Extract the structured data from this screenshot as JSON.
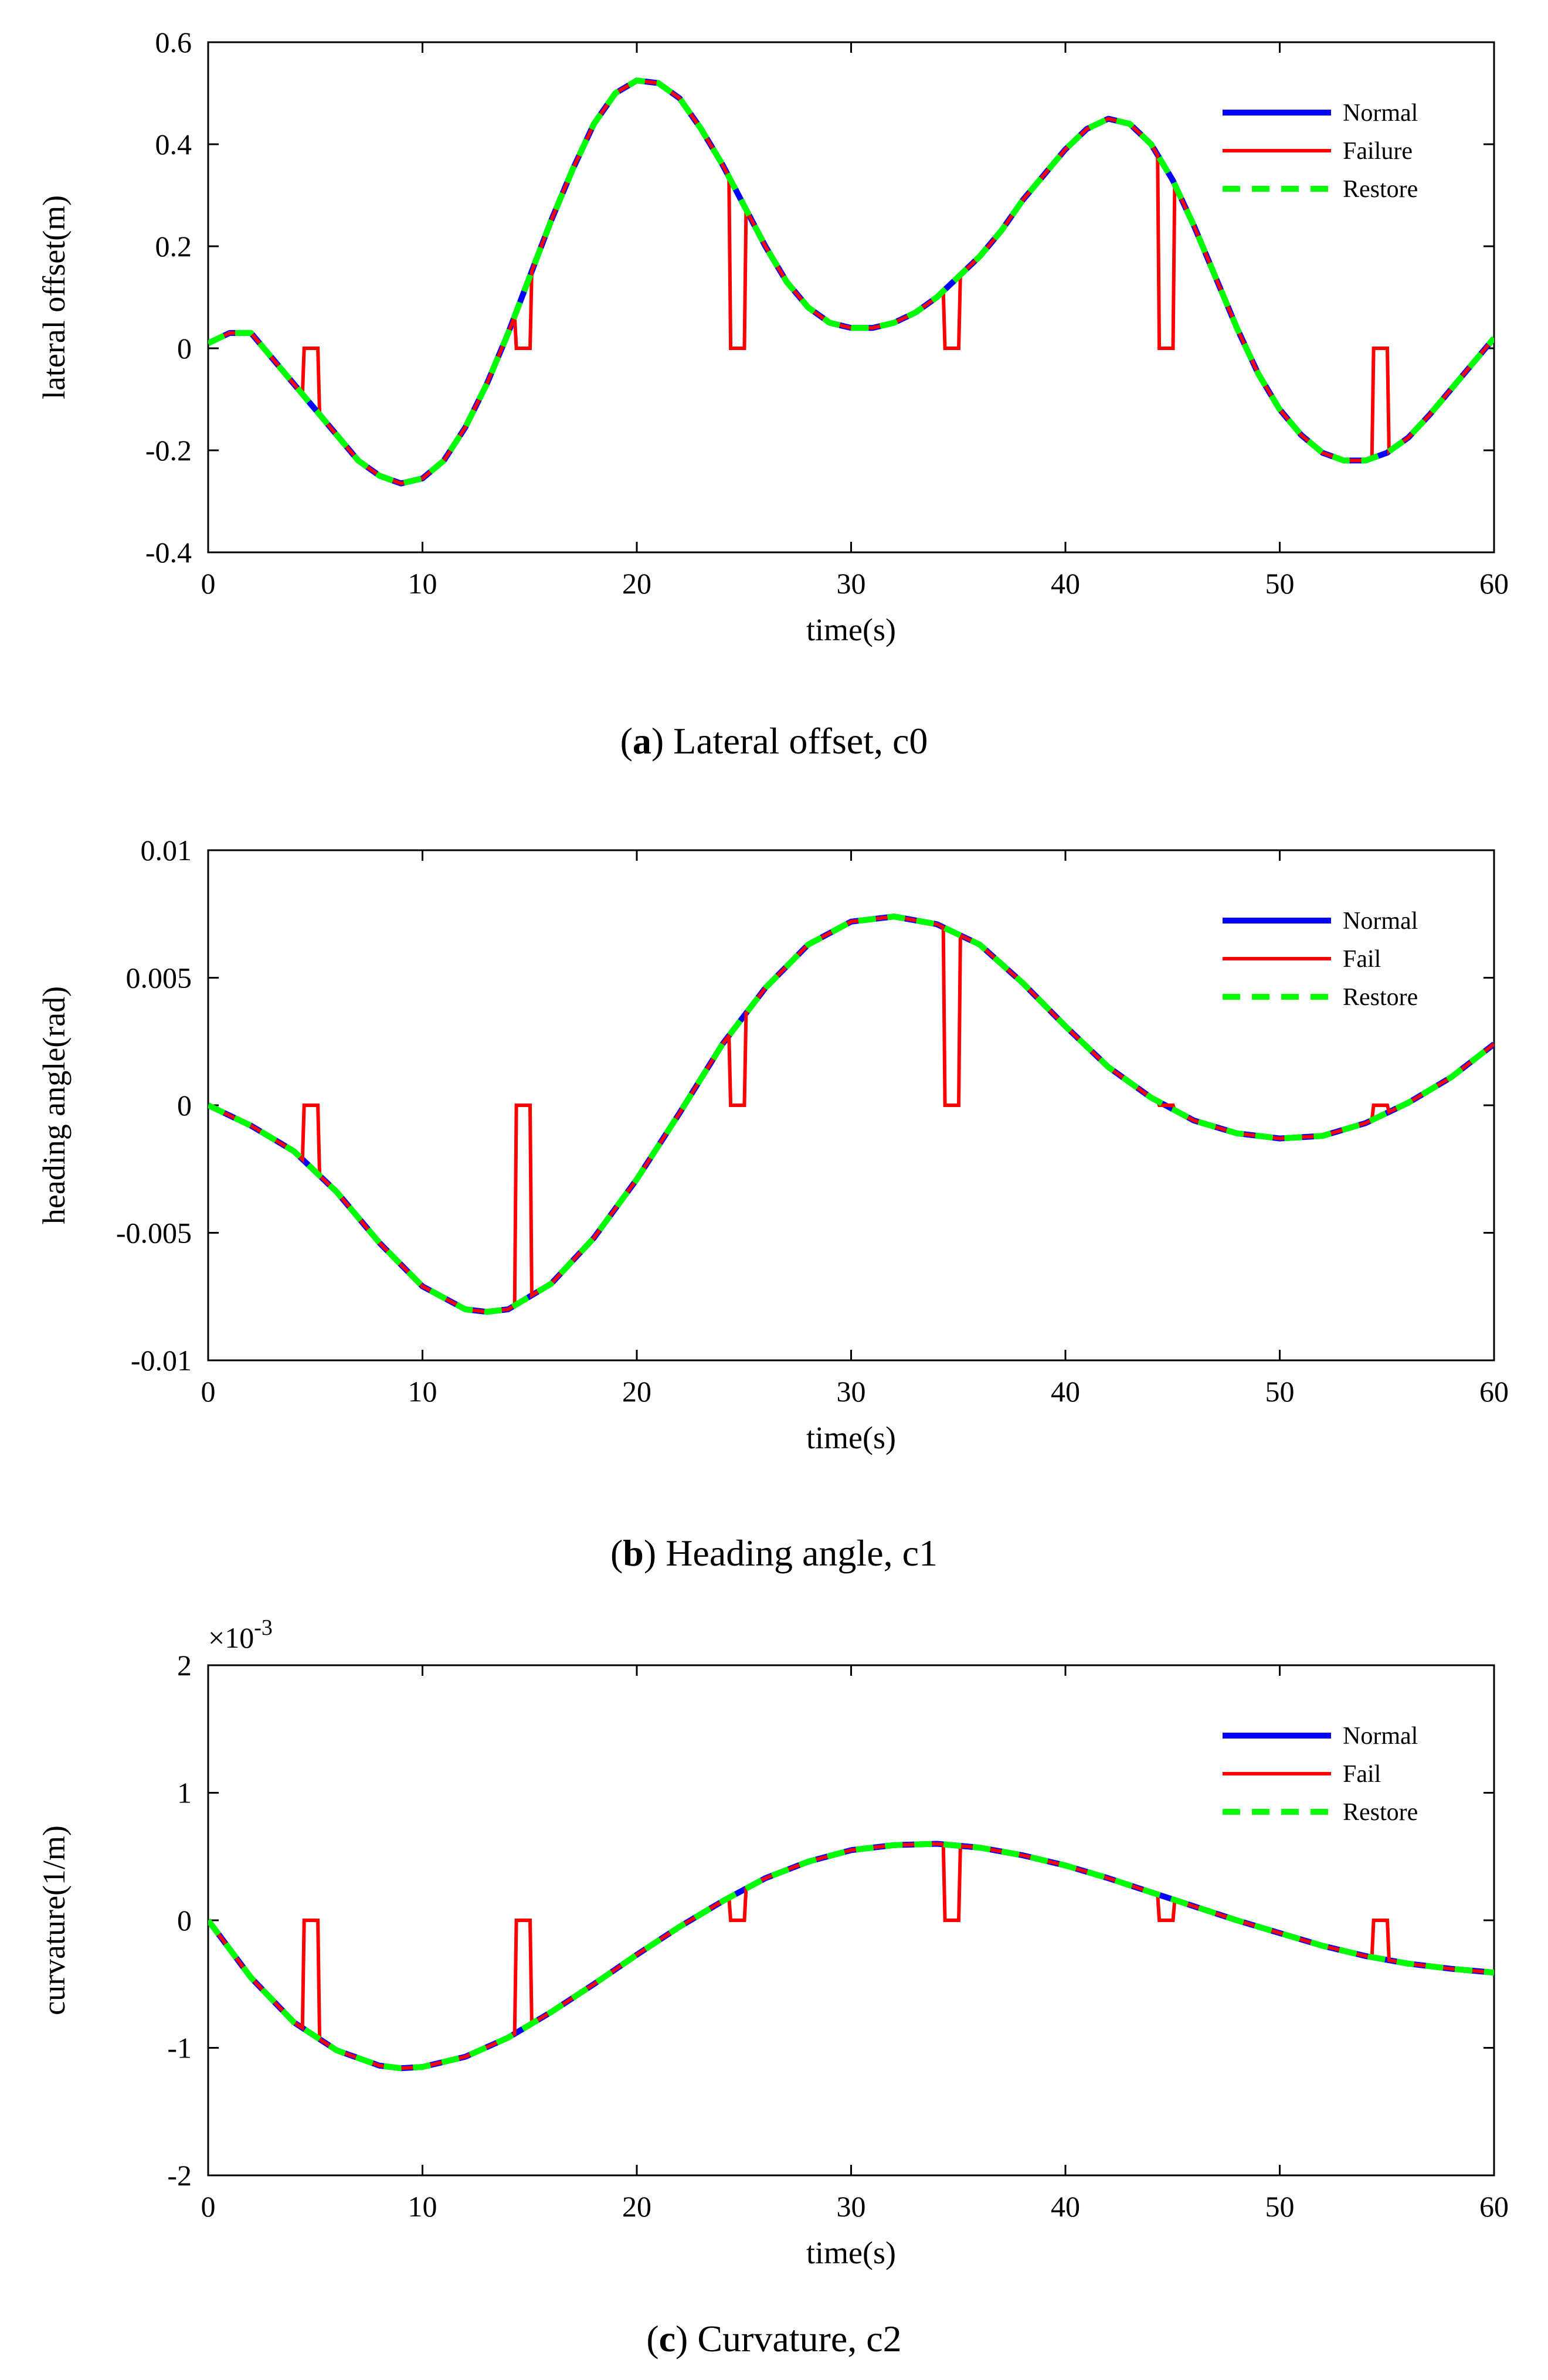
{
  "chart_data": [
    {
      "type": "line",
      "xlabel": "time(s)",
      "ylabel": "lateral offset(m)",
      "xlim": [
        0,
        60
      ],
      "ylim": [
        -0.4,
        0.6
      ],
      "xticks": [
        0,
        10,
        20,
        30,
        40,
        50,
        60
      ],
      "yticks": [
        -0.4,
        -0.2,
        0,
        0.2,
        0.4,
        0.6
      ],
      "xtick_labels": [
        "0",
        "10",
        "20",
        "30",
        "40",
        "50",
        "60"
      ],
      "ytick_labels": [
        "-0.4",
        "-0.2",
        "0",
        "0.2",
        "0.4",
        "0.6"
      ],
      "exponent_label": "",
      "caption_letter": "a",
      "caption_text": " Lateral offset, c0",
      "legend_location": "top-right",
      "series": [
        {
          "name": "Normal",
          "color": "#0000ff",
          "style": "solid"
        },
        {
          "name": "Failure",
          "color": "#ff0000",
          "style": "solid"
        },
        {
          "name": "Restore",
          "color": "#00ff00",
          "style": "dashed"
        }
      ],
      "x": [
        0,
        1,
        2,
        3,
        4,
        5,
        6,
        7,
        8,
        9,
        10,
        11,
        12,
        13,
        14,
        15,
        16,
        17,
        18,
        19,
        20,
        21,
        22,
        23,
        24,
        25,
        26,
        27,
        28,
        29,
        30,
        31,
        32,
        33,
        34,
        35,
        36,
        37,
        38,
        39,
        40,
        41,
        42,
        43,
        44,
        45,
        46,
        47,
        48,
        49,
        50,
        51,
        52,
        53,
        54,
        55,
        56,
        57,
        58,
        59,
        60
      ],
      "y": [
        0.01,
        0.03,
        0.03,
        -0.02,
        -0.07,
        -0.12,
        -0.17,
        -0.22,
        -0.25,
        -0.265,
        -0.255,
        -0.22,
        -0.155,
        -0.07,
        0.03,
        0.14,
        0.25,
        0.35,
        0.44,
        0.5,
        0.525,
        0.52,
        0.49,
        0.43,
        0.36,
        0.28,
        0.2,
        0.13,
        0.08,
        0.05,
        0.04,
        0.04,
        0.05,
        0.07,
        0.1,
        0.14,
        0.18,
        0.23,
        0.29,
        0.34,
        0.39,
        0.43,
        0.45,
        0.44,
        0.4,
        0.33,
        0.24,
        0.14,
        0.04,
        -0.05,
        -0.12,
        -0.17,
        -0.205,
        -0.22,
        -0.22,
        -0.205,
        -0.175,
        -0.13,
        -0.08,
        -0.03,
        0.02
      ],
      "failure_intervals": [
        [
          4.4,
          5.2
        ],
        [
          14.3,
          15.1
        ],
        [
          24.3,
          25.1
        ],
        [
          34.3,
          35.1
        ],
        [
          44.3,
          45.1
        ],
        [
          54.3,
          55.1
        ]
      ],
      "failure_value": 0
    },
    {
      "type": "line",
      "xlabel": "time(s)",
      "ylabel": "heading angle(rad)",
      "xlim": [
        0,
        60
      ],
      "ylim": [
        -0.01,
        0.01
      ],
      "xticks": [
        0,
        10,
        20,
        30,
        40,
        50,
        60
      ],
      "yticks": [
        -0.01,
        -0.005,
        0,
        0.005,
        0.01
      ],
      "xtick_labels": [
        "0",
        "10",
        "20",
        "30",
        "40",
        "50",
        "60"
      ],
      "ytick_labels": [
        "-0.01",
        "-0.005",
        "0",
        "0.005",
        "0.01"
      ],
      "exponent_label": "",
      "caption_letter": "b",
      "caption_text": " Heading angle, c1",
      "legend_location": "top-right",
      "series": [
        {
          "name": "Normal",
          "color": "#0000ff",
          "style": "solid"
        },
        {
          "name": "Fail",
          "color": "#ff0000",
          "style": "solid"
        },
        {
          "name": "Restore",
          "color": "#00ff00",
          "style": "dashed"
        }
      ],
      "x": [
        0,
        2,
        4,
        6,
        8,
        10,
        12,
        13,
        14,
        16,
        18,
        20,
        22,
        24,
        26,
        28,
        30,
        32,
        34,
        36,
        38,
        40,
        42,
        44,
        46,
        48,
        50,
        52,
        54,
        56,
        58,
        60
      ],
      "y": [
        0,
        -0.0008,
        -0.0018,
        -0.0034,
        -0.0054,
        -0.0071,
        -0.008,
        -0.0081,
        -0.008,
        -0.007,
        -0.0052,
        -0.0029,
        -0.0003,
        0.0024,
        0.0046,
        0.0063,
        0.0072,
        0.0074,
        0.0071,
        0.0063,
        0.0048,
        0.0031,
        0.0015,
        0.0003,
        -0.0006,
        -0.0011,
        -0.0013,
        -0.0012,
        -0.0007,
        0.0001,
        0.0011,
        0.0024
      ],
      "failure_intervals": [
        [
          4.4,
          5.2
        ],
        [
          14.3,
          15.1
        ],
        [
          24.3,
          25.1
        ],
        [
          34.3,
          35.1
        ],
        [
          44.3,
          45.1
        ],
        [
          54.3,
          55.1
        ]
      ],
      "failure_value": 0
    },
    {
      "type": "line",
      "xlabel": "time(s)",
      "ylabel": "curvature(1/m)",
      "xlim": [
        0,
        60
      ],
      "ylim": [
        -2,
        2
      ],
      "xticks": [
        0,
        10,
        20,
        30,
        40,
        50,
        60
      ],
      "yticks": [
        -2,
        -1,
        0,
        1,
        2
      ],
      "xtick_labels": [
        "0",
        "10",
        "20",
        "30",
        "40",
        "50",
        "60"
      ],
      "ytick_labels": [
        "-2",
        "-1",
        "0",
        "1",
        "2"
      ],
      "exponent_label": "×10-3",
      "caption_letter": "c",
      "caption_text": " Curvature, c2",
      "legend_location": "top-right",
      "series": [
        {
          "name": "Normal",
          "color": "#0000ff",
          "style": "solid"
        },
        {
          "name": "Fail",
          "color": "#ff0000",
          "style": "solid"
        },
        {
          "name": "Restore",
          "color": "#00ff00",
          "style": "dashed"
        }
      ],
      "x": [
        0,
        2,
        4,
        6,
        8,
        9,
        10,
        12,
        14,
        16,
        18,
        20,
        22,
        24,
        26,
        28,
        30,
        32,
        34,
        36,
        38,
        40,
        42,
        44,
        46,
        48,
        50,
        52,
        54,
        56,
        58,
        60
      ],
      "y": [
        0,
        -0.45,
        -0.8,
        -1.02,
        -1.14,
        -1.16,
        -1.15,
        -1.07,
        -0.92,
        -0.72,
        -0.5,
        -0.27,
        -0.05,
        0.15,
        0.33,
        0.46,
        0.55,
        0.59,
        0.6,
        0.57,
        0.51,
        0.43,
        0.33,
        0.22,
        0.11,
        0.0,
        -0.1,
        -0.2,
        -0.28,
        -0.34,
        -0.38,
        -0.41
      ],
      "failure_intervals": [
        [
          4.4,
          5.2
        ],
        [
          14.3,
          15.1
        ],
        [
          24.3,
          25.1
        ],
        [
          34.3,
          35.1
        ],
        [
          44.3,
          45.1
        ],
        [
          54.3,
          55.1
        ]
      ],
      "failure_value": 0
    }
  ]
}
